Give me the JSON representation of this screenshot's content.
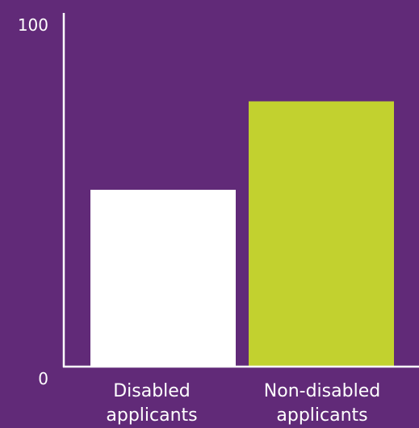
{
  "colors": {
    "background": "#612a78",
    "axis": "#ffffff",
    "text": "#ffffff"
  },
  "chart_data": {
    "type": "bar",
    "title": "",
    "xlabel": "",
    "ylabel": "",
    "ylim": [
      0,
      100
    ],
    "yticks": [
      "0",
      "100"
    ],
    "grid": false,
    "categories": [
      [
        "Disabled",
        "applicants"
      ],
      [
        "Non-disabled",
        "applicants"
      ]
    ],
    "values": [
      50,
      75
    ],
    "bar_colors": [
      "#ffffff",
      "#c2d12f"
    ]
  }
}
